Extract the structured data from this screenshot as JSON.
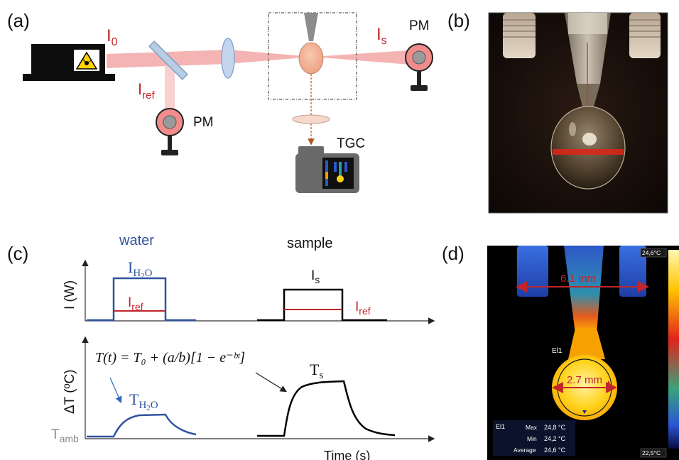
{
  "panels": {
    "a": "(a)",
    "b": "(b)",
    "c": "(c)",
    "d": "(d)"
  },
  "setup": {
    "i0_main": "I",
    "i0_sub": "0",
    "iref_main": "I",
    "iref_sub": "ref",
    "is_main": "I",
    "is_sub": "s",
    "pm_label": "PM",
    "tgc_label": "TGC",
    "icons": [
      "laser-warning-icon",
      "mirror-icon",
      "lens-icon",
      "pipette-icon",
      "droplet-icon",
      "power-meter-icon",
      "thermal-camera-icon"
    ],
    "colors": {
      "beam": "#f29b9b",
      "droplet": "#f4b79a",
      "pm_ring": "#f08c8c",
      "arrow": "#b4541f"
    }
  },
  "plots": {
    "water_label": "water",
    "sample_label": "sample",
    "y_top_label": "I (W)",
    "y_bottom_label": "ΔT (ºC)",
    "x_label": "Time (s)",
    "ih2o_main": "I",
    "ih2o_sub": "H",
    "ih2o_sub2": "2",
    "ih2o_sub3": "O",
    "iref_main": "I",
    "iref_sub": "ref",
    "is_main": "I",
    "is_sub": "s",
    "th2o_main": "T",
    "th2o_sub": "H",
    "th2o_sub2": "2",
    "th2o_sub3": "O",
    "ts_main": "T",
    "ts_sub": "s",
    "tamb_main": "T",
    "tamb_sub": "amb",
    "equation": "T(t) = T₀ + (a/b)[1 − e⁻ᵇᵗ]",
    "colors": {
      "water": "#2f53a0",
      "ref": "#c0262b",
      "sample": "#000000"
    }
  },
  "photo": {
    "description_icon": "pendant-droplet-photo"
  },
  "thermal": {
    "width_label": "6.1 mm",
    "diameter_label": "2.7 mm",
    "ellipse_label": "El1",
    "scale_max": "24,6°C",
    "scale_min": "22,5°C",
    "stats_label": "El1",
    "max_key": "Max",
    "max_value": "24,8 °C",
    "min_key": "Min",
    "min_value": "24,2 °C",
    "avg_key": "Average",
    "avg_value": "24,6 °C"
  }
}
